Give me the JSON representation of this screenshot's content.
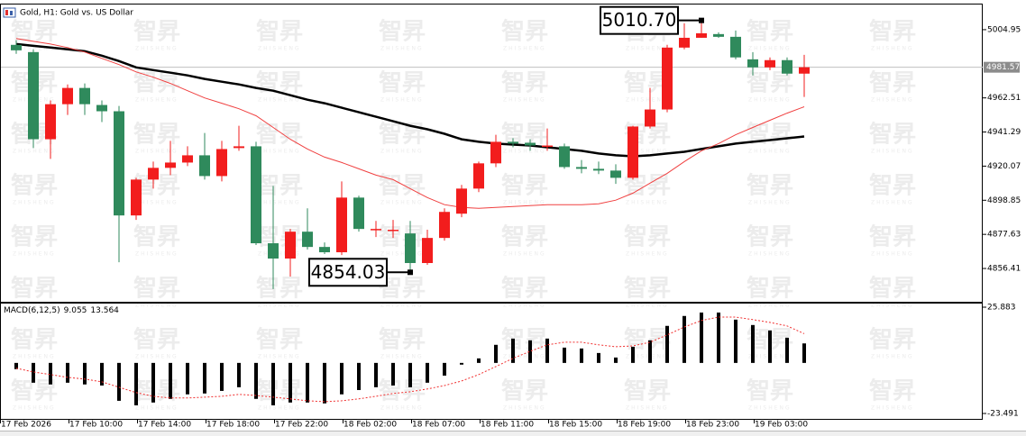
{
  "watermark": {
    "text": "智昇",
    "subtext": "ZHISHENG"
  },
  "chart_data": [
    {
      "type": "candlestick",
      "title": "Gold, H1: Gold vs. US Dollar",
      "categories": [
        "17 Feb 2026",
        null,
        null,
        null,
        "17 Feb 10:00",
        null,
        null,
        null,
        "17 Feb 14:00",
        null,
        null,
        null,
        "17 Feb 18:00",
        null,
        null,
        null,
        "17 Feb 22:00",
        null,
        null,
        null,
        "18 Feb 02:00",
        null,
        null,
        null,
        "18 Feb 07:00",
        null,
        null,
        null,
        "18 Feb 11:00",
        null,
        null,
        null,
        "18 Feb 15:00",
        null,
        null,
        null,
        "18 Feb 19:00",
        null,
        null,
        null,
        "18 Feb 23:00",
        null,
        null,
        null,
        "19 Feb 03:00",
        null,
        null
      ],
      "open": [
        4995.5,
        4991.0,
        4936.8,
        4958.6,
        4968.7,
        4958.1,
        4954.2,
        4889.4,
        4911.7,
        4919.0,
        4922.3,
        4926.8,
        4913.9,
        4931.3,
        4932.4,
        4872.1,
        4862.6,
        4879.3,
        4869.8,
        4866.5,
        4900.5,
        4880.5,
        4879.9,
        4878.2,
        4859.8,
        4875.4,
        4890.5,
        4906.1,
        4921.8,
        4935.2,
        4934.6,
        4932.4,
        4932.4,
        4919.5,
        4918.4,
        4917.3,
        4912.8,
        4944.7,
        4955.3,
        4993.8,
        4999.9,
        5002.2,
        5000.5,
        4986.5,
        4981.5,
        4986.0,
        4977.6
      ],
      "high": [
        4998.3,
        4992.7,
        4960.9,
        4970.9,
        4971.5,
        4960.9,
        4957.5,
        4912.8,
        4922.9,
        4935.8,
        4932.4,
        4940.7,
        4935.8,
        4945.2,
        4935.2,
        4907.8,
        4881.0,
        4893.8,
        4872.6,
        4910.6,
        4901.7,
        4886.0,
        4886.6,
        4886.0,
        4880.5,
        4893.8,
        4908.4,
        4922.9,
        4939.6,
        4937.5,
        4936.8,
        4943.5,
        4934.1,
        4923.9,
        4922.9,
        4921.2,
        4945.2,
        4968.7,
        4995.5,
        5008.9,
        5010.7,
        5003.3,
        5004.4,
        4991.0,
        4987.7,
        4987.7,
        4989.3
      ],
      "low": [
        4989.9,
        4931.3,
        4924.6,
        4951.9,
        4951.9,
        4947.5,
        4860.3,
        4886.6,
        4906.1,
        4914.5,
        4920.1,
        4911.7,
        4910.6,
        4929.6,
        4871.0,
        4843.6,
        4851.4,
        4868.2,
        4865.4,
        4864.8,
        4879.3,
        4876.0,
        4875.4,
        4854.03,
        4858.7,
        4873.7,
        4888.3,
        4903.9,
        4919.5,
        4931.8,
        4929.6,
        4929.6,
        4918.4,
        4915.6,
        4915.1,
        4909.0,
        4911.7,
        4943.5,
        4953.6,
        4992.7,
        4999.9,
        4999.9,
        4986.5,
        4976.5,
        4979.8,
        4976.5,
        4963.1
      ],
      "close": [
        4992.1,
        4936.8,
        4958.6,
        4968.7,
        4958.6,
        4954.2,
        4889.4,
        4911.7,
        4919.0,
        4922.3,
        4926.8,
        4913.9,
        4930.7,
        4932.4,
        4872.1,
        4862.6,
        4879.3,
        4869.8,
        4866.5,
        4900.5,
        4881.0,
        4881.0,
        4880.5,
        4859.8,
        4875.4,
        4891.6,
        4906.1,
        4921.8,
        4935.2,
        4934.1,
        4932.9,
        4932.9,
        4919.5,
        4918.4,
        4917.3,
        4912.8,
        4944.7,
        4955.3,
        4993.8,
        4999.9,
        5002.7,
        5000.5,
        4987.7,
        4981.5,
        4986.0,
        4977.6,
        4981.57
      ],
      "up_color": "#f21d1d",
      "down_color": "#2f8a5c",
      "series": [
        {
          "color": "#000000",
          "values": [
            4996.0,
            4994.9,
            4993.8,
            4992.7,
            4991.6,
            4988.8,
            4985.4,
            4981.5,
            4979.8,
            4978.2,
            4976.5,
            4974.3,
            4972.6,
            4970.9,
            4968.7,
            4967.0,
            4964.2,
            4961.4,
            4959.2,
            4956.4,
            4953.6,
            4950.8,
            4948.0,
            4945.2,
            4943.0,
            4940.2,
            4936.8,
            4935.2,
            4934.1,
            4933.5,
            4932.9,
            4931.8,
            4930.7,
            4929.6,
            4927.9,
            4926.8,
            4926.2,
            4926.8,
            4927.9,
            4929.0,
            4930.7,
            4932.4,
            4934.1,
            4935.2,
            4936.3,
            4937.4,
            4938.5
          ]
        },
        {
          "color": "#f04040",
          "values": [
            4999.4,
            4997.7,
            4996.0,
            4993.8,
            4991.0,
            4987.1,
            4983.2,
            4978.7,
            4975.4,
            4971.5,
            4967.0,
            4962.5,
            4959.2,
            4955.8,
            4951.4,
            4944.1,
            4936.8,
            4930.7,
            4925.7,
            4922.3,
            4918.4,
            4914.5,
            4911.7,
            4906.1,
            4900.5,
            4896.1,
            4894.4,
            4893.8,
            4894.4,
            4895.0,
            4895.5,
            4896.1,
            4896.1,
            4896.1,
            4896.6,
            4898.9,
            4903.3,
            4909.5,
            4915.6,
            4922.9,
            4929.6,
            4934.1,
            4939.6,
            4944.1,
            4948.6,
            4953.0,
            4957.0
          ]
        }
      ],
      "annotations": [
        {
          "value": 5010.7,
          "label": "5010.70"
        },
        {
          "value": 4854.03,
          "label": "4854.03"
        }
      ],
      "ylim": [
        4835.7,
        5020.6
      ],
      "yticks": [
        5004.95,
        4962.51,
        4941.29,
        4920.07,
        4898.85,
        4877.63,
        4856.41
      ]
    },
    {
      "type": "macd",
      "title": "MACD(6,12,5)",
      "series": [
        {
          "color": "#000000",
          "values": [
            -2.9,
            -9.2,
            -10.0,
            -9.2,
            -10.0,
            -10.5,
            -17.6,
            -19.7,
            -18.4,
            -16.7,
            -14.6,
            -14.2,
            -13.0,
            -11.3,
            -16.7,
            -19.7,
            -18.4,
            -18.4,
            -18.8,
            -14.6,
            -12.6,
            -11.3,
            -10.5,
            -11.3,
            -9.2,
            -5.9,
            -0.8,
            2.1,
            8.4,
            11.3,
            10.5,
            11.3,
            7.1,
            6.7,
            4.6,
            2.5,
            7.5,
            10.5,
            17.2,
            21.8,
            23.4,
            23.4,
            20.1,
            17.6,
            15.1,
            11.7,
            9.055
          ]
        },
        {
          "color": "#f03030",
          "values": [
            -2.5,
            -4.2,
            -5.4,
            -6.7,
            -7.5,
            -8.8,
            -11.3,
            -13.8,
            -15.5,
            -16.3,
            -16.3,
            -15.9,
            -15.5,
            -14.6,
            -15.1,
            -15.9,
            -16.7,
            -17.6,
            -18.0,
            -17.6,
            -16.7,
            -15.5,
            -14.2,
            -13.4,
            -12.1,
            -10.5,
            -8.4,
            -5.4,
            -1.7,
            2.1,
            5.4,
            8.4,
            9.6,
            9.6,
            8.4,
            7.5,
            7.9,
            9.6,
            13.0,
            16.7,
            19.7,
            21.3,
            21.3,
            20.1,
            18.8,
            17.2,
            13.564
          ]
        }
      ],
      "ylim": [
        -26.0,
        27.56
      ],
      "yticks": [
        25.883,
        -23.491
      ]
    }
  ]
}
